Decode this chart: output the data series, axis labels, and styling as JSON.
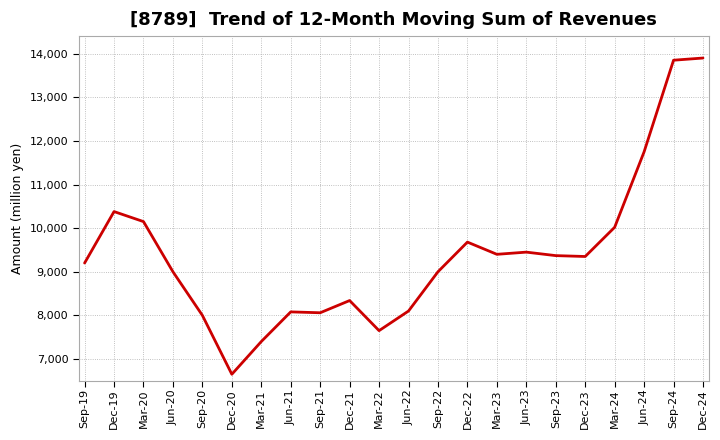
{
  "title": "[8789]  Trend of 12-Month Moving Sum of Revenues",
  "ylabel": "Amount (million yen)",
  "line_color": "#CC0000",
  "background_color": "#ffffff",
  "plot_bg_color": "#ffffff",
  "grid_color": "#999999",
  "ylim": [
    6500,
    14400
  ],
  "yticks": [
    7000,
    8000,
    9000,
    10000,
    11000,
    12000,
    13000,
    14000
  ],
  "x_labels": [
    "Sep-19",
    "Dec-19",
    "Mar-20",
    "Jun-20",
    "Sep-20",
    "Dec-20",
    "Mar-21",
    "Jun-21",
    "Sep-21",
    "Dec-21",
    "Mar-22",
    "Jun-22",
    "Sep-22",
    "Dec-22",
    "Mar-23",
    "Jun-23",
    "Sep-23",
    "Dec-23",
    "Mar-24",
    "Jun-24",
    "Sep-24",
    "Dec-24"
  ],
  "values": [
    9200,
    10380,
    10150,
    9000,
    8000,
    6650,
    7400,
    8080,
    8060,
    8340,
    7650,
    8100,
    9000,
    9680,
    9400,
    9450,
    9370,
    9350,
    10020,
    11750,
    13850,
    13900
  ],
  "title_fontsize": 13,
  "ylabel_fontsize": 9,
  "tick_fontsize": 8,
  "line_width": 2.0
}
